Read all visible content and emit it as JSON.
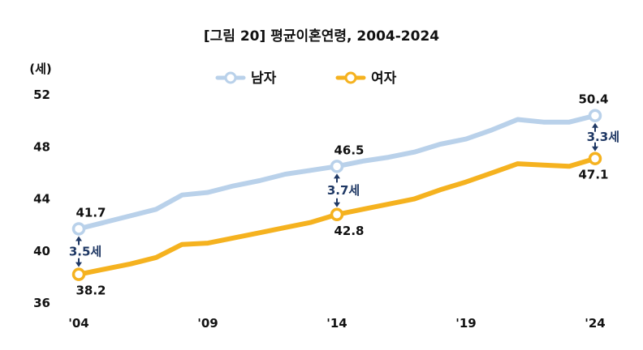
{
  "chart_data": {
    "type": "line",
    "title": "[그림 20] 평균이혼연령, 2004-2024",
    "ylabel": "(세)",
    "ylim": [
      36,
      52
    ],
    "yticks": [
      "36",
      "40",
      "44",
      "48",
      "52"
    ],
    "xlim": [
      2004,
      2024
    ],
    "xticks": [
      {
        "year": 2004,
        "label": "'04"
      },
      {
        "year": 2009,
        "label": "'09"
      },
      {
        "year": 2014,
        "label": "'14"
      },
      {
        "year": 2019,
        "label": "'19"
      },
      {
        "year": 2024,
        "label": "'24"
      }
    ],
    "x": [
      2004,
      2005,
      2006,
      2007,
      2008,
      2009,
      2010,
      2011,
      2012,
      2013,
      2014,
      2015,
      2016,
      2017,
      2018,
      2019,
      2020,
      2021,
      2022,
      2023,
      2024
    ],
    "series": [
      {
        "name": "남자",
        "color": "#b9d1ea",
        "values": [
          41.7,
          42.2,
          42.7,
          43.2,
          44.3,
          44.5,
          45.0,
          45.4,
          45.9,
          46.2,
          46.5,
          46.9,
          47.2,
          47.6,
          48.2,
          48.6,
          49.3,
          50.1,
          49.9,
          49.9,
          50.4
        ]
      },
      {
        "name": "여자",
        "color": "#f5b21f",
        "values": [
          38.2,
          38.6,
          39.0,
          39.5,
          40.5,
          40.6,
          41.0,
          41.4,
          41.8,
          42.2,
          42.8,
          43.2,
          43.6,
          44.0,
          44.7,
          45.3,
          46.0,
          46.7,
          46.6,
          46.5,
          47.1
        ]
      }
    ],
    "data_labels": [
      {
        "series": 0,
        "year": 2004,
        "text": "41.7"
      },
      {
        "series": 1,
        "year": 2004,
        "text": "38.2"
      },
      {
        "series": 0,
        "year": 2014,
        "text": "46.5"
      },
      {
        "series": 1,
        "year": 2014,
        "text": "42.8"
      },
      {
        "series": 0,
        "year": 2024,
        "text": "50.4"
      },
      {
        "series": 1,
        "year": 2024,
        "text": "47.1"
      }
    ],
    "gap_annotations": [
      {
        "year": 2004,
        "text": "3.5세"
      },
      {
        "year": 2014,
        "text": "3.7세"
      },
      {
        "year": 2024,
        "text": "3.3세"
      }
    ],
    "annotation_color": "#1f3864",
    "legend": [
      "남자",
      "여자"
    ],
    "grid": false
  }
}
